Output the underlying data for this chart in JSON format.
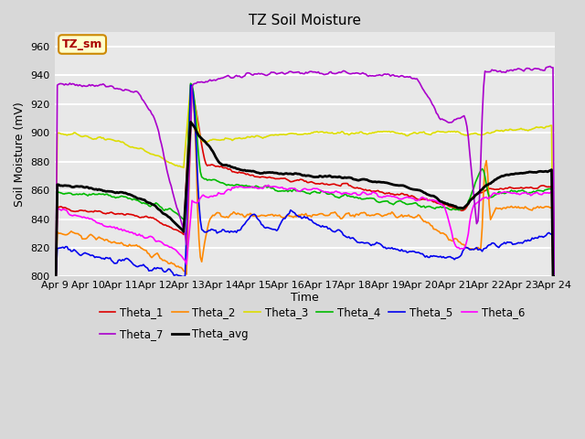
{
  "title": "TZ Soil Moisture",
  "ylabel": "Soil Moisture (mV)",
  "xlabel": "Time",
  "ylim": [
    800,
    970
  ],
  "xlim": [
    0,
    360
  ],
  "fig_bg_color": "#d8d8d8",
  "plot_bg_color": "#e8e8e8",
  "annotation_text": "TZ_sm",
  "annotation_bg": "#ffffcc",
  "annotation_border": "#cc8800",
  "x_ticks": [
    0,
    24,
    48,
    72,
    96,
    120,
    144,
    168,
    192,
    216,
    240,
    264,
    288,
    312,
    336,
    360
  ],
  "x_tick_labels": [
    "Apr 9",
    "Apr 10",
    "Apr 11",
    "Apr 12",
    "Apr 13",
    "Apr 14",
    "Apr 15",
    "Apr 16",
    "Apr 17",
    "Apr 18",
    "Apr 19",
    "Apr 20",
    "Apr 21",
    "Apr 22",
    "Apr 23",
    "Apr 24"
  ],
  "series_colors": {
    "Theta_1": "#dd0000",
    "Theta_2": "#ff8800",
    "Theta_3": "#dddd00",
    "Theta_4": "#00bb00",
    "Theta_5": "#0000ee",
    "Theta_6": "#ff00ff",
    "Theta_7": "#aa00cc",
    "Theta_avg": "#000000"
  },
  "linewidth": 1.2
}
